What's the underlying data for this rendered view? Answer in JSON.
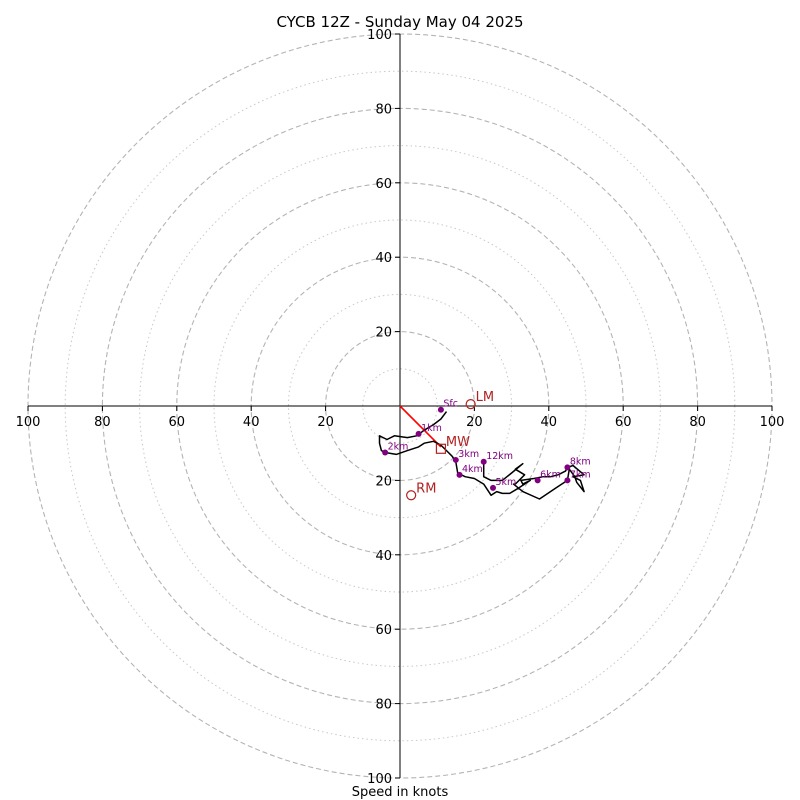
{
  "chart_data": {
    "type": "hodograph",
    "title": "CYCB 12Z - Sunday May 04 2025",
    "xlabel": "Speed in knots",
    "range": [
      -100,
      100
    ],
    "major_rings": [
      20,
      40,
      60,
      80,
      100
    ],
    "minor_rings": [
      10,
      30,
      50,
      70,
      90
    ],
    "ticks": [
      {
        "value": -100,
        "label": "100"
      },
      {
        "value": -80,
        "label": "80"
      },
      {
        "value": -60,
        "label": "60"
      },
      {
        "value": -40,
        "label": "40"
      },
      {
        "value": -20,
        "label": "20"
      },
      {
        "value": 20,
        "label": "20"
      },
      {
        "value": 40,
        "label": "40"
      },
      {
        "value": 60,
        "label": "60"
      },
      {
        "value": 80,
        "label": "80"
      },
      {
        "value": 100,
        "label": "100"
      }
    ],
    "profile_color": "#000000",
    "profile": [
      [
        12.5,
        -1.5
      ],
      [
        11,
        -3.5
      ],
      [
        9,
        -5
      ],
      [
        6.5,
        -6.5
      ],
      [
        4.5,
        -8
      ],
      [
        2,
        -8.5
      ],
      [
        -1.5,
        -8
      ],
      [
        -3.5,
        -9
      ],
      [
        -5.5,
        -8
      ],
      [
        -5.5,
        -10
      ],
      [
        -5,
        -12
      ],
      [
        -4,
        -12.5
      ],
      [
        -1,
        -13
      ],
      [
        2,
        -12
      ],
      [
        5,
        -11
      ],
      [
        6.5,
        -10
      ],
      [
        9,
        -9.5
      ],
      [
        11,
        -10.5
      ],
      [
        12.5,
        -12
      ],
      [
        14,
        -13.5
      ],
      [
        15,
        -15
      ],
      [
        15.5,
        -18
      ],
      [
        17.5,
        -19
      ],
      [
        20,
        -19.5
      ],
      [
        22.5,
        -21
      ],
      [
        24.5,
        -24
      ],
      [
        26,
        -23
      ],
      [
        27.5,
        -23.5
      ],
      [
        29.5,
        -23.5
      ],
      [
        32,
        -22
      ],
      [
        35,
        -20
      ],
      [
        33,
        -21
      ],
      [
        32.5,
        -20
      ],
      [
        36,
        -19.5
      ],
      [
        38.5,
        -19
      ],
      [
        40.5,
        -19
      ],
      [
        42.5,
        -18.5
      ],
      [
        44.5,
        -17.5
      ],
      [
        45,
        -16.5
      ],
      [
        46.5,
        -16
      ],
      [
        49.5,
        -18.5
      ],
      [
        46.5,
        -19
      ],
      [
        48.5,
        -20
      ],
      [
        49.5,
        -23
      ],
      [
        47.5,
        -20.5
      ],
      [
        47,
        -19
      ],
      [
        45.5,
        -17
      ],
      [
        45,
        -20
      ],
      [
        42,
        -22
      ],
      [
        37.5,
        -25
      ],
      [
        33,
        -23
      ],
      [
        30.5,
        -21
      ],
      [
        31,
        -21
      ],
      [
        33.5,
        -18.5
      ],
      [
        31,
        -17
      ],
      [
        33,
        -15.5
      ],
      [
        30,
        -18
      ],
      [
        27.5,
        -20
      ],
      [
        26,
        -20
      ],
      [
        24.5,
        -20
      ],
      [
        22.5,
        -19
      ],
      [
        22.5,
        -15
      ]
    ],
    "height_color": "#800080",
    "heights": [
      {
        "label": "Sfc",
        "x": 11,
        "y": -1
      },
      {
        "label": "1km",
        "x": 5,
        "y": -7.5
      },
      {
        "label": "2km",
        "x": -4,
        "y": -12.5
      },
      {
        "label": "3km",
        "x": 15,
        "y": -14.5
      },
      {
        "label": "4km",
        "x": 16,
        "y": -18.5
      },
      {
        "label": "5km",
        "x": 25,
        "y": -22
      },
      {
        "label": "6km",
        "x": 37,
        "y": -20
      },
      {
        "label": "7km",
        "x": 45,
        "y": -20
      },
      {
        "label": "8km",
        "x": 45,
        "y": -16.5
      },
      {
        "label": "12km",
        "x": 22.5,
        "y": -15
      }
    ],
    "motion_color": "#b22222",
    "bunkers_line_color": "#ff0000",
    "bunkers_line": [
      [
        0,
        0
      ],
      [
        11,
        -11
      ]
    ],
    "storm_motion": [
      {
        "label": "LM",
        "marker": "circle",
        "x": 19,
        "y": 0.5
      },
      {
        "label": "MW",
        "marker": "square",
        "x": 11,
        "y": -11.5
      },
      {
        "label": "RM",
        "marker": "circle",
        "x": 3,
        "y": -24
      }
    ]
  }
}
